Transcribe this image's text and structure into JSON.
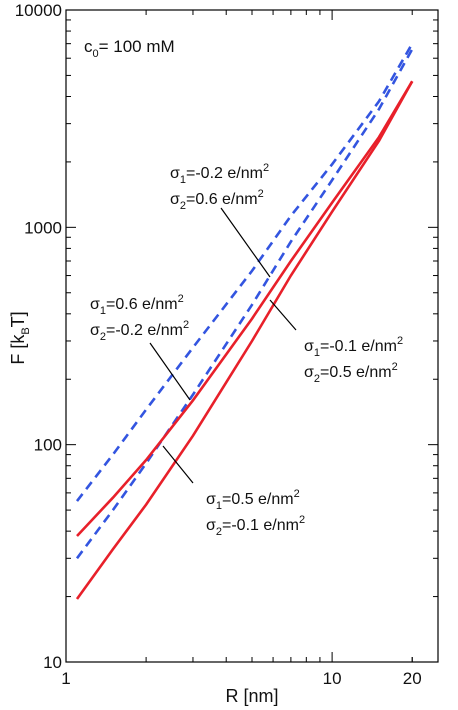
{
  "chart_data": {
    "type": "line",
    "xscale": "log",
    "yscale": "log",
    "xlim": [
      1,
      25
    ],
    "ylim": [
      10,
      10000
    ],
    "xlabel": {
      "main": "R [nm]"
    },
    "ylabel": {
      "pre": "F [k",
      "sub": "B",
      "post": "T]"
    },
    "x_ticks": [
      {
        "value": 1,
        "label": "1"
      },
      {
        "value": 10,
        "label": "10"
      },
      {
        "value": 20,
        "label": "20"
      }
    ],
    "y_ticks": [
      {
        "value": 10,
        "label": "10"
      },
      {
        "value": 100,
        "label": "100"
      },
      {
        "value": 1000,
        "label": "1000"
      },
      {
        "value": 10000,
        "label": "10000"
      }
    ],
    "condition_label": {
      "pre": "c",
      "sub": "0",
      "post": "= 100 mM"
    },
    "series": [
      {
        "id": "blue-upper",
        "color": "#3355e0",
        "dashed": true,
        "points": [
          [
            1.1,
            55
          ],
          [
            1.5,
            90
          ],
          [
            2,
            145
          ],
          [
            3,
            280
          ],
          [
            5,
            630
          ],
          [
            7,
            1130
          ],
          [
            10,
            1950
          ],
          [
            15,
            3800
          ],
          [
            20,
            7000
          ]
        ]
      },
      {
        "id": "blue-lower",
        "color": "#3355e0",
        "dashed": true,
        "points": [
          [
            1.1,
            30
          ],
          [
            1.5,
            50
          ],
          [
            2,
            82
          ],
          [
            3,
            170
          ],
          [
            5,
            440
          ],
          [
            7,
            860
          ],
          [
            10,
            1650
          ],
          [
            15,
            3500
          ],
          [
            20,
            6600
          ]
        ]
      },
      {
        "id": "red-upper",
        "color": "#e8202a",
        "dashed": false,
        "points": [
          [
            1.1,
            38
          ],
          [
            1.5,
            57
          ],
          [
            2,
            85
          ],
          [
            3,
            160
          ],
          [
            5,
            380
          ],
          [
            7,
            700
          ],
          [
            10,
            1300
          ],
          [
            15,
            2600
          ],
          [
            20,
            4700
          ]
        ]
      },
      {
        "id": "red-lower",
        "color": "#e8202a",
        "dashed": false,
        "points": [
          [
            1.1,
            19.5
          ],
          [
            1.5,
            33
          ],
          [
            2,
            53
          ],
          [
            3,
            110
          ],
          [
            5,
            300
          ],
          [
            7,
            600
          ],
          [
            10,
            1180
          ],
          [
            15,
            2500
          ],
          [
            20,
            4700
          ]
        ]
      }
    ],
    "annotations": [
      {
        "id": "anno-1",
        "line1": {
          "pre": "σ",
          "sub": "1",
          "post": "=-0.2 e/nm",
          "sup": "2"
        },
        "line2": {
          "pre": "σ",
          "sub": "2",
          "post": "=0.6 e/nm",
          "sup": "2"
        }
      },
      {
        "id": "anno-2",
        "line1": {
          "pre": "σ",
          "sub": "1",
          "post": "=0.6 e/nm",
          "sup": "2"
        },
        "line2": {
          "pre": "σ",
          "sub": "2",
          "post": "=-0.2 e/nm",
          "sup": "2"
        }
      },
      {
        "id": "anno-3",
        "line1": {
          "pre": "σ",
          "sub": "1",
          "post": "=-0.1 e/nm",
          "sup": "2"
        },
        "line2": {
          "pre": "σ",
          "sub": "2",
          "post": "=0.5 e/nm",
          "sup": "2"
        }
      },
      {
        "id": "anno-4",
        "line1": {
          "pre": "σ",
          "sub": "1",
          "post": "=0.5 e/nm",
          "sup": "2"
        },
        "line2": {
          "pre": "σ",
          "sub": "2",
          "post": "=-0.1 e/nm",
          "sup": "2"
        }
      }
    ]
  }
}
